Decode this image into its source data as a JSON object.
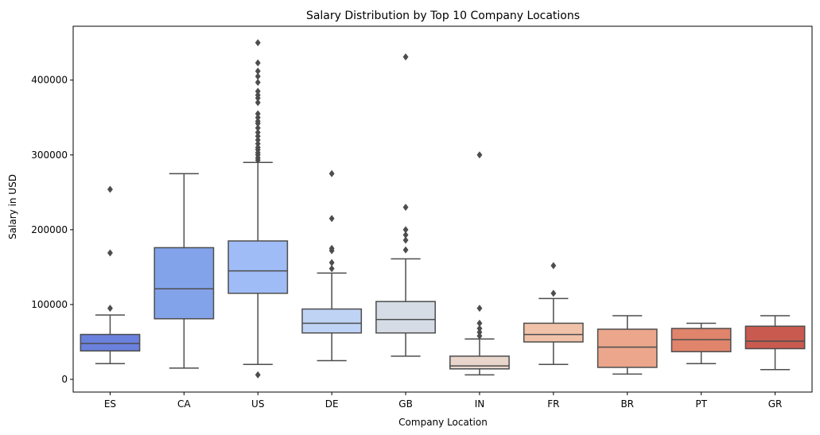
{
  "chart_data": {
    "type": "box",
    "title": "Salary Distribution by Top 10 Company Locations",
    "xlabel": "Company Location",
    "ylabel": "Salary in USD",
    "ylim": [
      -17000,
      472000
    ],
    "yticks": [
      0,
      100000,
      200000,
      300000,
      400000
    ],
    "ytick_labels": [
      "0",
      "100000",
      "200000",
      "300000",
      "400000"
    ],
    "grid": false,
    "categories": [
      "ES",
      "CA",
      "US",
      "DE",
      "GB",
      "IN",
      "FR",
      "BR",
      "PT",
      "GR"
    ],
    "boxes": [
      {
        "category": "ES",
        "color": "#6a81de",
        "whisker_low": 21000,
        "q1": 38000,
        "median": 48000,
        "q3": 60000,
        "whisker_high": 86000,
        "outliers": [
          95000,
          169000,
          254000
        ]
      },
      {
        "category": "CA",
        "color": "#82a3ea",
        "whisker_low": 15000,
        "q1": 81000,
        "median": 121000,
        "q3": 176000,
        "whisker_high": 275000,
        "outliers": []
      },
      {
        "category": "US",
        "color": "#9fbcf6",
        "whisker_low": 20000,
        "q1": 115000,
        "median": 145000,
        "q3": 185000,
        "whisker_high": 290000,
        "outliers": [
          6000,
          293000,
          296000,
          300000,
          303000,
          307000,
          310000,
          315000,
          320000,
          325000,
          330000,
          336000,
          342000,
          345000,
          350000,
          355000,
          370000,
          376000,
          380000,
          385000,
          397000,
          405000,
          412000,
          423000,
          450000
        ]
      },
      {
        "category": "DE",
        "color": "#bfd3f5",
        "whisker_low": 25000,
        "q1": 62000,
        "median": 75000,
        "q3": 94000,
        "whisker_high": 142000,
        "outliers": [
          148000,
          156000,
          172000,
          175000,
          215000,
          275000
        ]
      },
      {
        "category": "GB",
        "color": "#d6dce5",
        "whisker_low": 31000,
        "q1": 62000,
        "median": 80000,
        "q3": 104000,
        "whisker_high": 161000,
        "outliers": [
          173000,
          186000,
          193000,
          200000,
          230000,
          431000
        ]
      },
      {
        "category": "IN",
        "color": "#e8d5cb",
        "whisker_low": 6000,
        "q1": 14000,
        "median": 18000,
        "q3": 31000,
        "whisker_high": 54000,
        "outliers": [
          58000,
          63000,
          68000,
          75000,
          95000,
          300000
        ]
      },
      {
        "category": "FR",
        "color": "#f0c2a9",
        "whisker_low": 20000,
        "q1": 50000,
        "median": 60000,
        "q3": 75000,
        "whisker_high": 108000,
        "outliers": [
          115000,
          152000
        ]
      },
      {
        "category": "BR",
        "color": "#eba68c",
        "whisker_low": 7000,
        "q1": 16000,
        "median": 43000,
        "q3": 67000,
        "whisker_high": 85000,
        "outliers": []
      },
      {
        "category": "PT",
        "color": "#e0846c",
        "whisker_low": 21000,
        "q1": 37000,
        "median": 53000,
        "q3": 68000,
        "whisker_high": 75000,
        "outliers": []
      },
      {
        "category": "GR",
        "color": "#c95a4f",
        "whisker_low": 13000,
        "q1": 41000,
        "median": 51000,
        "q3": 71000,
        "whisker_high": 85000,
        "outliers": []
      }
    ],
    "line_color": "#4d4d4d"
  }
}
